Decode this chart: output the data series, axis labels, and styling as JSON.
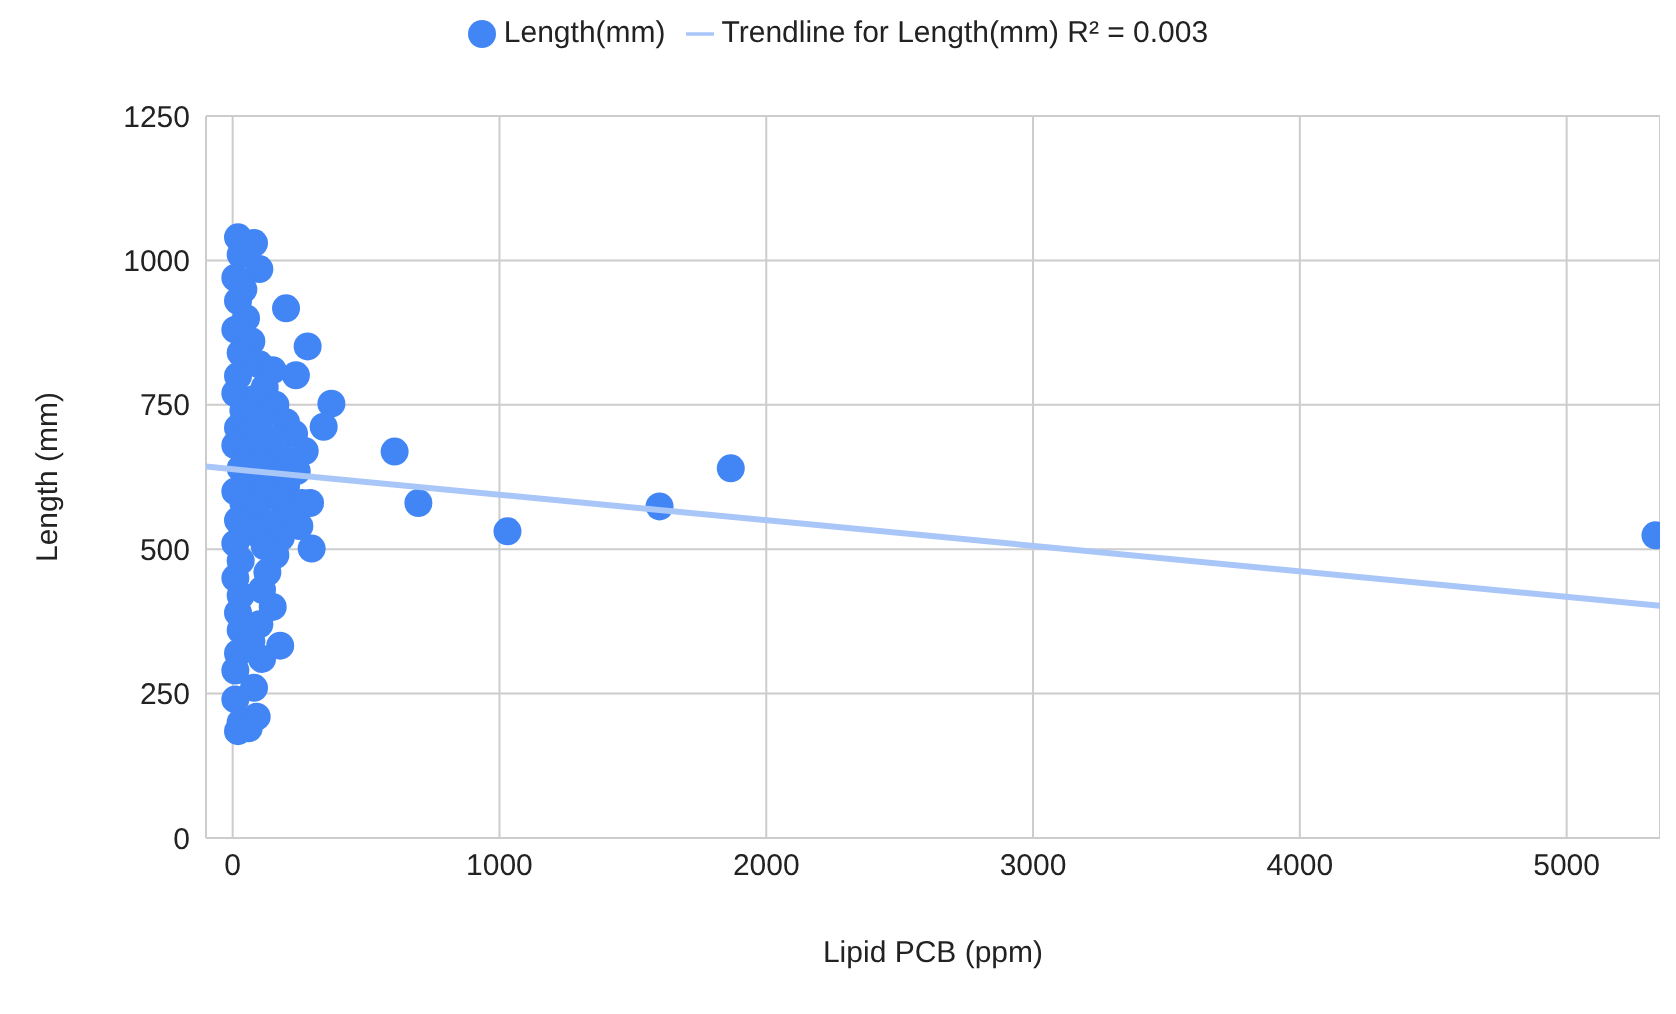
{
  "chart_data": {
    "type": "scatter",
    "xlabel": "Lipid PCB (ppm)",
    "ylabel": "Length (mm)",
    "xlim": [
      -100,
      5350
    ],
    "ylim": [
      0,
      1250
    ],
    "xticks": [
      0,
      1000,
      2000,
      3000,
      4000,
      5000
    ],
    "yticks": [
      0,
      250,
      500,
      750,
      1000,
      1250
    ],
    "grid": true,
    "legend": "top",
    "marker": "circle",
    "series": [
      {
        "name": "Length(mm)",
        "color": "#4285f4",
        "x": [
          200,
          281,
          237,
          370,
          341,
          607,
          696,
          1030,
          1600,
          1867,
          5333,
          296,
          178,
          290,
          20,
          80,
          30,
          100,
          10,
          40,
          20,
          50,
          10,
          70,
          30,
          100,
          150,
          20,
          120,
          10,
          80,
          160,
          40,
          110,
          200,
          20,
          70,
          230,
          140,
          10,
          50,
          270,
          180,
          100,
          30,
          240,
          150,
          60,
          200,
          10,
          110,
          170,
          40,
          260,
          90,
          200,
          20,
          140,
          250,
          70,
          180,
          10,
          120,
          160,
          30,
          130,
          10,
          110,
          30,
          150,
          20,
          100,
          30,
          70,
          20,
          110,
          10,
          80,
          10,
          90,
          30,
          60,
          20
        ],
        "values": [
          917,
          851,
          801,
          752,
          712,
          669,
          580,
          531,
          574,
          640,
          524,
          501,
          333,
          580,
          1040,
          1030,
          1010,
          985,
          970,
          950,
          930,
          900,
          880,
          860,
          840,
          820,
          810,
          800,
          780,
          770,
          760,
          750,
          740,
          730,
          720,
          710,
          700,
          700,
          690,
          680,
          670,
          670,
          660,
          650,
          640,
          635,
          630,
          620,
          610,
          600,
          600,
          590,
          580,
          580,
          570,
          560,
          550,
          545,
          540,
          530,
          520,
          510,
          505,
          490,
          480,
          460,
          450,
          430,
          420,
          400,
          390,
          370,
          360,
          340,
          320,
          310,
          290,
          260,
          240,
          210,
          200,
          190,
          185
        ]
      },
      {
        "name": "Trendline for Length(mm) R² = 0.003",
        "type": "line",
        "color": "#a9c6f9",
        "marker": "none",
        "x": [
          -100,
          5350
        ],
        "values": [
          643,
          402
        ]
      }
    ]
  }
}
